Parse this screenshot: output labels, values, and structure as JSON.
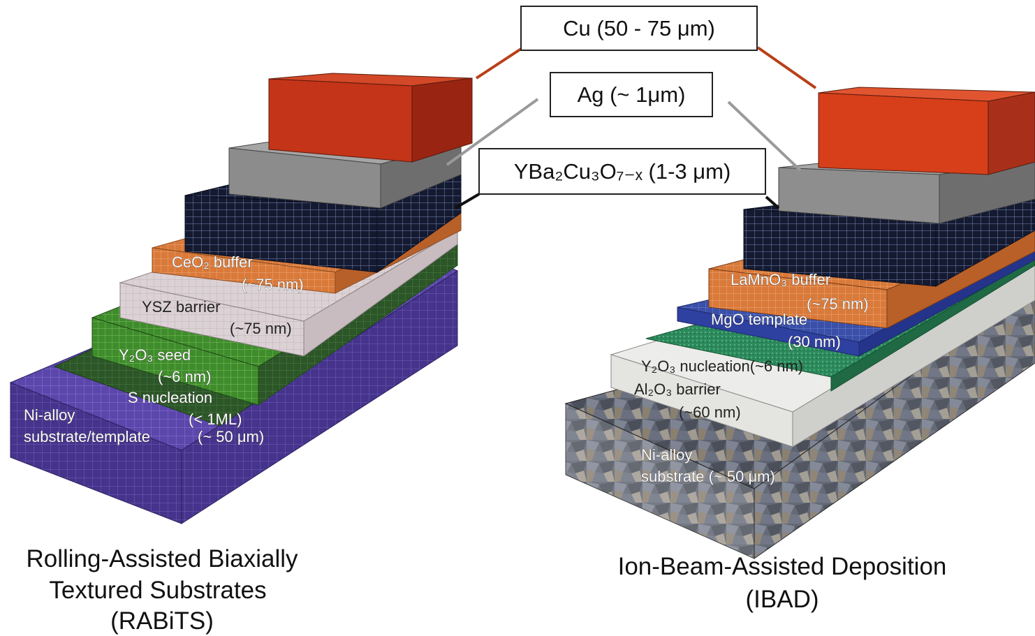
{
  "callouts": {
    "cu": "Cu (50 - 75 μm)",
    "ag": "Ag (~ 1μm)",
    "ybco": "YBa₂Cu₃O₇₋ₓ (1-3 μm)"
  },
  "rabits": {
    "caption_line1": "Rolling-Assisted Biaxially",
    "caption_line2": "Textured Substrates",
    "caption_line3": "(RABiTS)",
    "ceo2_name": "CeO₂ buffer",
    "ceo2_thickness": "(~75 nm)",
    "ysz_name": "YSZ  barrier",
    "ysz_thickness": "(~75 nm)",
    "y2o3_name": "Y₂O₃ seed",
    "y2o3_thickness": "(~6 nm)",
    "s_name": "S nucleation",
    "s_thickness": "(< 1ML)",
    "ni_line1": "Ni-alloy",
    "ni_line2": "substrate/template",
    "ni_thickness": "(~ 50 μm)"
  },
  "ibad": {
    "caption_line1": "Ion-Beam-Assisted Deposition",
    "caption_line2": "(IBAD)",
    "lamno3_name": "LaMnO₃ buffer",
    "lamno3_thickness": "(~75 nm)",
    "mgo_name": "MgO template",
    "mgo_thickness": "(30 nm)",
    "y2o3_label": "Y₂O₃ nucleation(~6 nm)",
    "al2o3_name": "Al₂O₃ barrier",
    "al2o3_thickness": "(~60 nm)",
    "ni_line1": "Ni-alloy",
    "ni_line2": "substrate (~ 50 μm)"
  },
  "colors": {
    "cu": "#c8321a",
    "ag": "#8e8e8e",
    "ybco": "#1a2238",
    "ceo2": "#d97a3a",
    "ysz": "#d9d0d2",
    "y2o3": "#3d8a2a",
    "s_layer": "#2f5a2a",
    "ni_rabits": "#5a44a8",
    "lamno3": "#d87840",
    "mgo": "#3d52a8",
    "y2o3_ibad": "#2e8a5e",
    "al2o3": "#e8e8e4",
    "ni_ibad": "#5a5f6a"
  }
}
